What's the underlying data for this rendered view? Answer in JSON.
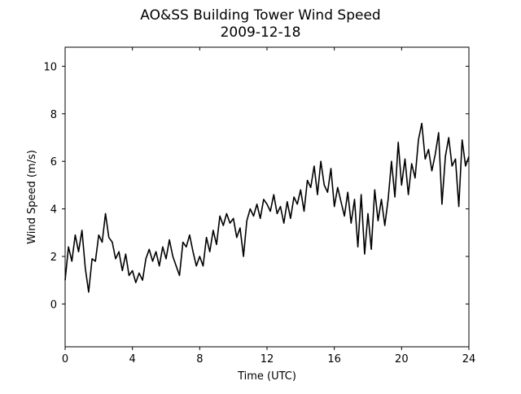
{
  "chart_data": {
    "type": "line",
    "title": "AO&SS Building Tower Wind Speed",
    "subtitle": "2009-12-18",
    "xlabel": "Time (UTC)",
    "ylabel": "Wind Speed (m/s)",
    "xlim": [
      0,
      24
    ],
    "ylim": [
      -1.8,
      10.8
    ],
    "xticks": [
      0,
      4,
      8,
      12,
      16,
      20,
      24
    ],
    "yticks": [
      0,
      2,
      4,
      6,
      8,
      10
    ],
    "grid": false,
    "line_color": "#000000",
    "x": [
      0.0,
      0.2,
      0.4,
      0.6,
      0.8,
      1.0,
      1.2,
      1.4,
      1.6,
      1.8,
      2.0,
      2.2,
      2.4,
      2.6,
      2.8,
      3.0,
      3.2,
      3.4,
      3.6,
      3.8,
      4.0,
      4.2,
      4.4,
      4.6,
      4.8,
      5.0,
      5.2,
      5.4,
      5.6,
      5.8,
      6.0,
      6.2,
      6.4,
      6.6,
      6.8,
      7.0,
      7.2,
      7.4,
      7.6,
      7.8,
      8.0,
      8.2,
      8.4,
      8.6,
      8.8,
      9.0,
      9.2,
      9.4,
      9.6,
      9.8,
      10.0,
      10.2,
      10.4,
      10.6,
      10.8,
      11.0,
      11.2,
      11.4,
      11.6,
      11.8,
      12.0,
      12.2,
      12.4,
      12.6,
      12.8,
      13.0,
      13.2,
      13.4,
      13.6,
      13.8,
      14.0,
      14.2,
      14.4,
      14.6,
      14.8,
      15.0,
      15.2,
      15.4,
      15.6,
      15.8,
      16.0,
      16.2,
      16.4,
      16.6,
      16.8,
      17.0,
      17.2,
      17.4,
      17.6,
      17.8,
      18.0,
      18.2,
      18.4,
      18.6,
      18.8,
      19.0,
      19.2,
      19.4,
      19.6,
      19.8,
      20.0,
      20.2,
      20.4,
      20.6,
      20.8,
      21.0,
      21.2,
      21.4,
      21.6,
      21.8,
      22.0,
      22.2,
      22.4,
      22.6,
      22.8,
      23.0,
      23.2,
      23.4,
      23.6,
      23.8,
      24.0
    ],
    "series": [
      {
        "values": [
          1.0,
          2.4,
          1.8,
          2.9,
          2.2,
          3.1,
          1.5,
          0.5,
          1.9,
          1.8,
          2.9,
          2.6,
          3.8,
          2.8,
          2.6,
          1.9,
          2.2,
          1.4,
          2.1,
          1.2,
          1.4,
          0.9,
          1.3,
          1.0,
          1.9,
          2.3,
          1.8,
          2.2,
          1.6,
          2.4,
          1.9,
          2.7,
          2.0,
          1.6,
          1.2,
          2.6,
          2.4,
          2.9,
          2.2,
          1.6,
          2.0,
          1.6,
          2.8,
          2.2,
          3.1,
          2.5,
          3.7,
          3.3,
          3.8,
          3.4,
          3.6,
          2.8,
          3.2,
          2.0,
          3.5,
          4.0,
          3.7,
          4.2,
          3.6,
          4.4,
          4.2,
          3.9,
          4.6,
          3.8,
          4.1,
          3.4,
          4.3,
          3.6,
          4.5,
          4.2,
          4.8,
          3.9,
          5.2,
          4.9,
          5.8,
          4.6,
          6.0,
          5.0,
          4.7,
          5.7,
          4.1,
          4.9,
          4.3,
          3.7,
          4.7,
          3.4,
          4.4,
          2.4,
          4.6,
          2.1,
          3.8,
          2.3,
          4.8,
          3.5,
          4.4,
          3.3,
          4.4,
          6.0,
          4.5,
          6.8,
          5.0,
          6.1,
          4.6,
          5.9,
          5.3,
          6.9,
          7.6,
          6.1,
          6.5,
          5.6,
          6.3,
          7.2,
          4.2,
          6.2,
          7.0,
          5.8,
          6.1,
          4.1,
          6.9,
          5.8,
          6.2
        ]
      }
    ]
  }
}
